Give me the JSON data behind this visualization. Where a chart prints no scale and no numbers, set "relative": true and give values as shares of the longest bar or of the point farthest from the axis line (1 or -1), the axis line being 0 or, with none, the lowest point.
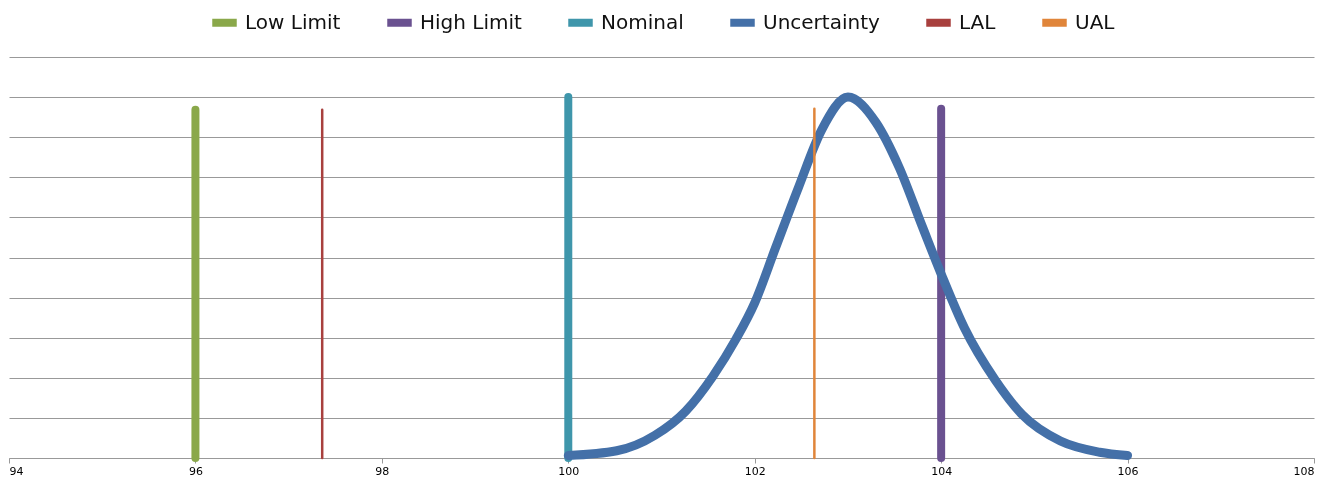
{
  "chart_data": {
    "type": "line",
    "relative": true,
    "xlim": [
      94,
      108
    ],
    "xticks": [
      94,
      96,
      98,
      100,
      102,
      104,
      106,
      108
    ],
    "tick_labels": "x",
    "grid": "y",
    "legend": "top",
    "series": [
      {
        "name": "Low Limit",
        "color": "#8aa84a",
        "x": [
          96,
          96
        ],
        "values": [
          0,
          0.965
        ]
      },
      {
        "name": "High Limit",
        "color": "#6a5190",
        "x": [
          104,
          104
        ],
        "values": [
          0,
          0.968
        ]
      },
      {
        "name": "Nominal",
        "color": "#3f96ab",
        "x": [
          100,
          100
        ],
        "values": [
          0,
          1.0
        ]
      },
      {
        "name": "Uncertainty",
        "color": "#4470a8",
        "x": [
          100,
          100.52,
          100.93,
          101.26,
          101.55,
          101.8,
          102,
          102.22,
          102.47,
          102.72,
          103,
          103.3,
          103.55,
          103.8,
          104,
          104.25,
          104.58,
          104.87,
          105.28,
          105.7,
          106
        ],
        "values": [
          0.007,
          0.02,
          0.063,
          0.13,
          0.226,
          0.33,
          0.43,
          0.58,
          0.75,
          0.91,
          1.0,
          0.93,
          0.805,
          0.64,
          0.51,
          0.36,
          0.216,
          0.12,
          0.047,
          0.016,
          0.007
        ]
      },
      {
        "name": "LAL",
        "color": "#a8403e",
        "x": [
          97.36,
          97.36
        ],
        "values": [
          0,
          0.965
        ]
      },
      {
        "name": "UAL",
        "color": "#e0853a",
        "x": [
          102.64,
          102.64
        ],
        "values": [
          0,
          0.968
        ]
      }
    ]
  }
}
